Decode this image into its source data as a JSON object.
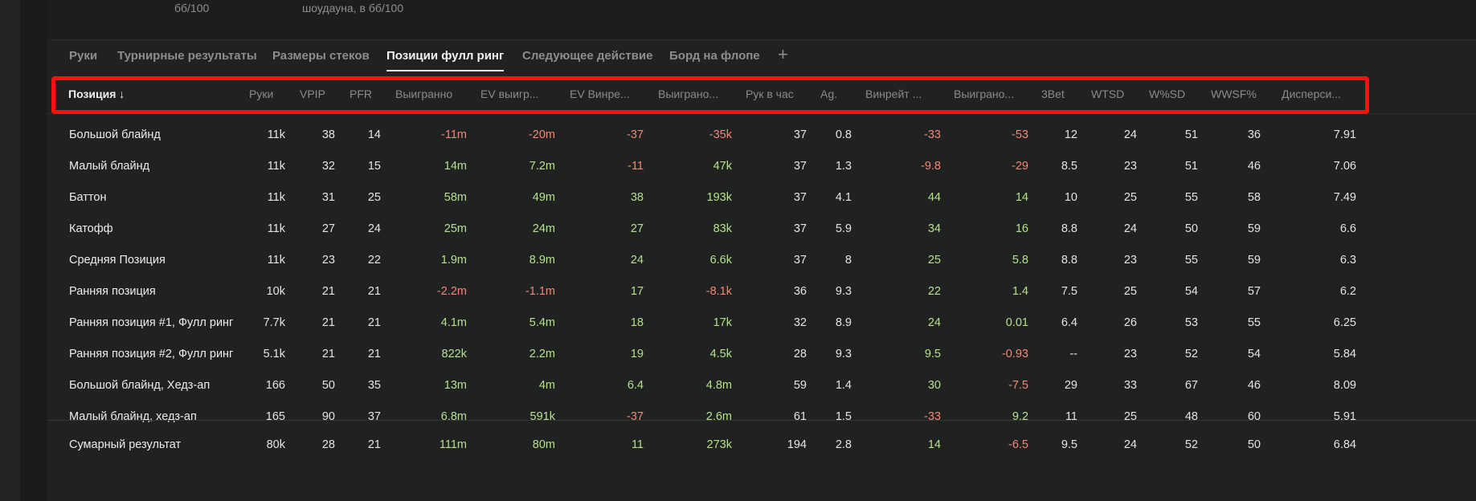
{
  "top_labels": [
    "бб/100",
    "шоудауна, в бб/100"
  ],
  "tabs": [
    {
      "label": "Руки",
      "active": false
    },
    {
      "label": "Турнирные результаты",
      "active": false
    },
    {
      "label": "Размеры стеков",
      "active": false
    },
    {
      "label": "Позиции фулл ринг",
      "active": true
    },
    {
      "label": "Следующее действие",
      "active": false
    },
    {
      "label": "Борд на флопе",
      "active": false
    }
  ],
  "add_tab_glyph": "+",
  "columns": [
    "Позиция ↓",
    "Руки",
    "VPIP",
    "PFR",
    "Выигранно",
    "EV выигр...",
    "EV Винре...",
    "Выиграно...",
    "Рук в час",
    "Ag.",
    "Винрейт ...",
    "Выиграно...",
    "3Bet",
    "WTSD",
    "W%SD",
    "WWSF%",
    "Дисперси..."
  ],
  "rows": [
    [
      "Большой блайнд",
      "11k",
      "38",
      "14",
      "-11m",
      "-20m",
      "-37",
      "-35k",
      "37",
      "0.8",
      "-33",
      "-53",
      "12",
      "24",
      "51",
      "36",
      "7.91"
    ],
    [
      "Малый блайнд",
      "11k",
      "32",
      "15",
      "14m",
      "7.2m",
      "-11",
      "47k",
      "37",
      "1.3",
      "-9.8",
      "-29",
      "8.5",
      "23",
      "51",
      "46",
      "7.06"
    ],
    [
      "Баттон",
      "11k",
      "31",
      "25",
      "58m",
      "49m",
      "38",
      "193k",
      "37",
      "4.1",
      "44",
      "14",
      "10",
      "25",
      "55",
      "58",
      "7.49"
    ],
    [
      "Катофф",
      "11k",
      "27",
      "24",
      "25m",
      "24m",
      "27",
      "83k",
      "37",
      "5.9",
      "34",
      "16",
      "8.8",
      "24",
      "50",
      "59",
      "6.6"
    ],
    [
      "Средняя Позиция",
      "11k",
      "23",
      "22",
      "1.9m",
      "8.9m",
      "24",
      "6.6k",
      "37",
      "8",
      "25",
      "5.8",
      "8.8",
      "23",
      "55",
      "59",
      "6.3"
    ],
    [
      "Ранняя позиция",
      "10k",
      "21",
      "21",
      "-2.2m",
      "-1.1m",
      "17",
      "-8.1k",
      "36",
      "9.3",
      "22",
      "1.4",
      "7.5",
      "25",
      "54",
      "57",
      "6.2"
    ],
    [
      "Ранняя позиция #1, Фулл ринг",
      "7.7k",
      "21",
      "21",
      "4.1m",
      "5.4m",
      "18",
      "17k",
      "32",
      "8.9",
      "24",
      "0.01",
      "6.4",
      "26",
      "53",
      "55",
      "6.25"
    ],
    [
      "Ранняя позиция #2, Фулл ринг",
      "5.1k",
      "21",
      "21",
      "822k",
      "2.2m",
      "19",
      "4.5k",
      "28",
      "9.3",
      "9.5",
      "-0.93",
      "--",
      "23",
      "52",
      "54",
      "5.84"
    ],
    [
      "Большой блайнд, Хедз-ап",
      "166",
      "50",
      "35",
      "13m",
      "4m",
      "6.4",
      "4.8m",
      "59",
      "1.4",
      "30",
      "-7.5",
      "29",
      "33",
      "67",
      "46",
      "8.09"
    ],
    [
      "Малый блайнд, хедз-ап",
      "165",
      "90",
      "37",
      "6.8m",
      "591k",
      "-37",
      "2.6m",
      "61",
      "1.5",
      "-33",
      "9.2",
      "11",
      "25",
      "48",
      "60",
      "5.91"
    ]
  ],
  "total": [
    "Сумарный результат",
    "80k",
    "28",
    "21",
    "111m",
    "80m",
    "11",
    "273k",
    "194",
    "2.8",
    "14",
    "-6.5",
    "9.5",
    "24",
    "52",
    "50",
    "6.84"
  ],
  "colored_columns": [
    4,
    5,
    6,
    7,
    10,
    11
  ],
  "colors": {
    "positive": "#b5e08e",
    "negative": "#f08876",
    "highlight": "#ff1010"
  }
}
